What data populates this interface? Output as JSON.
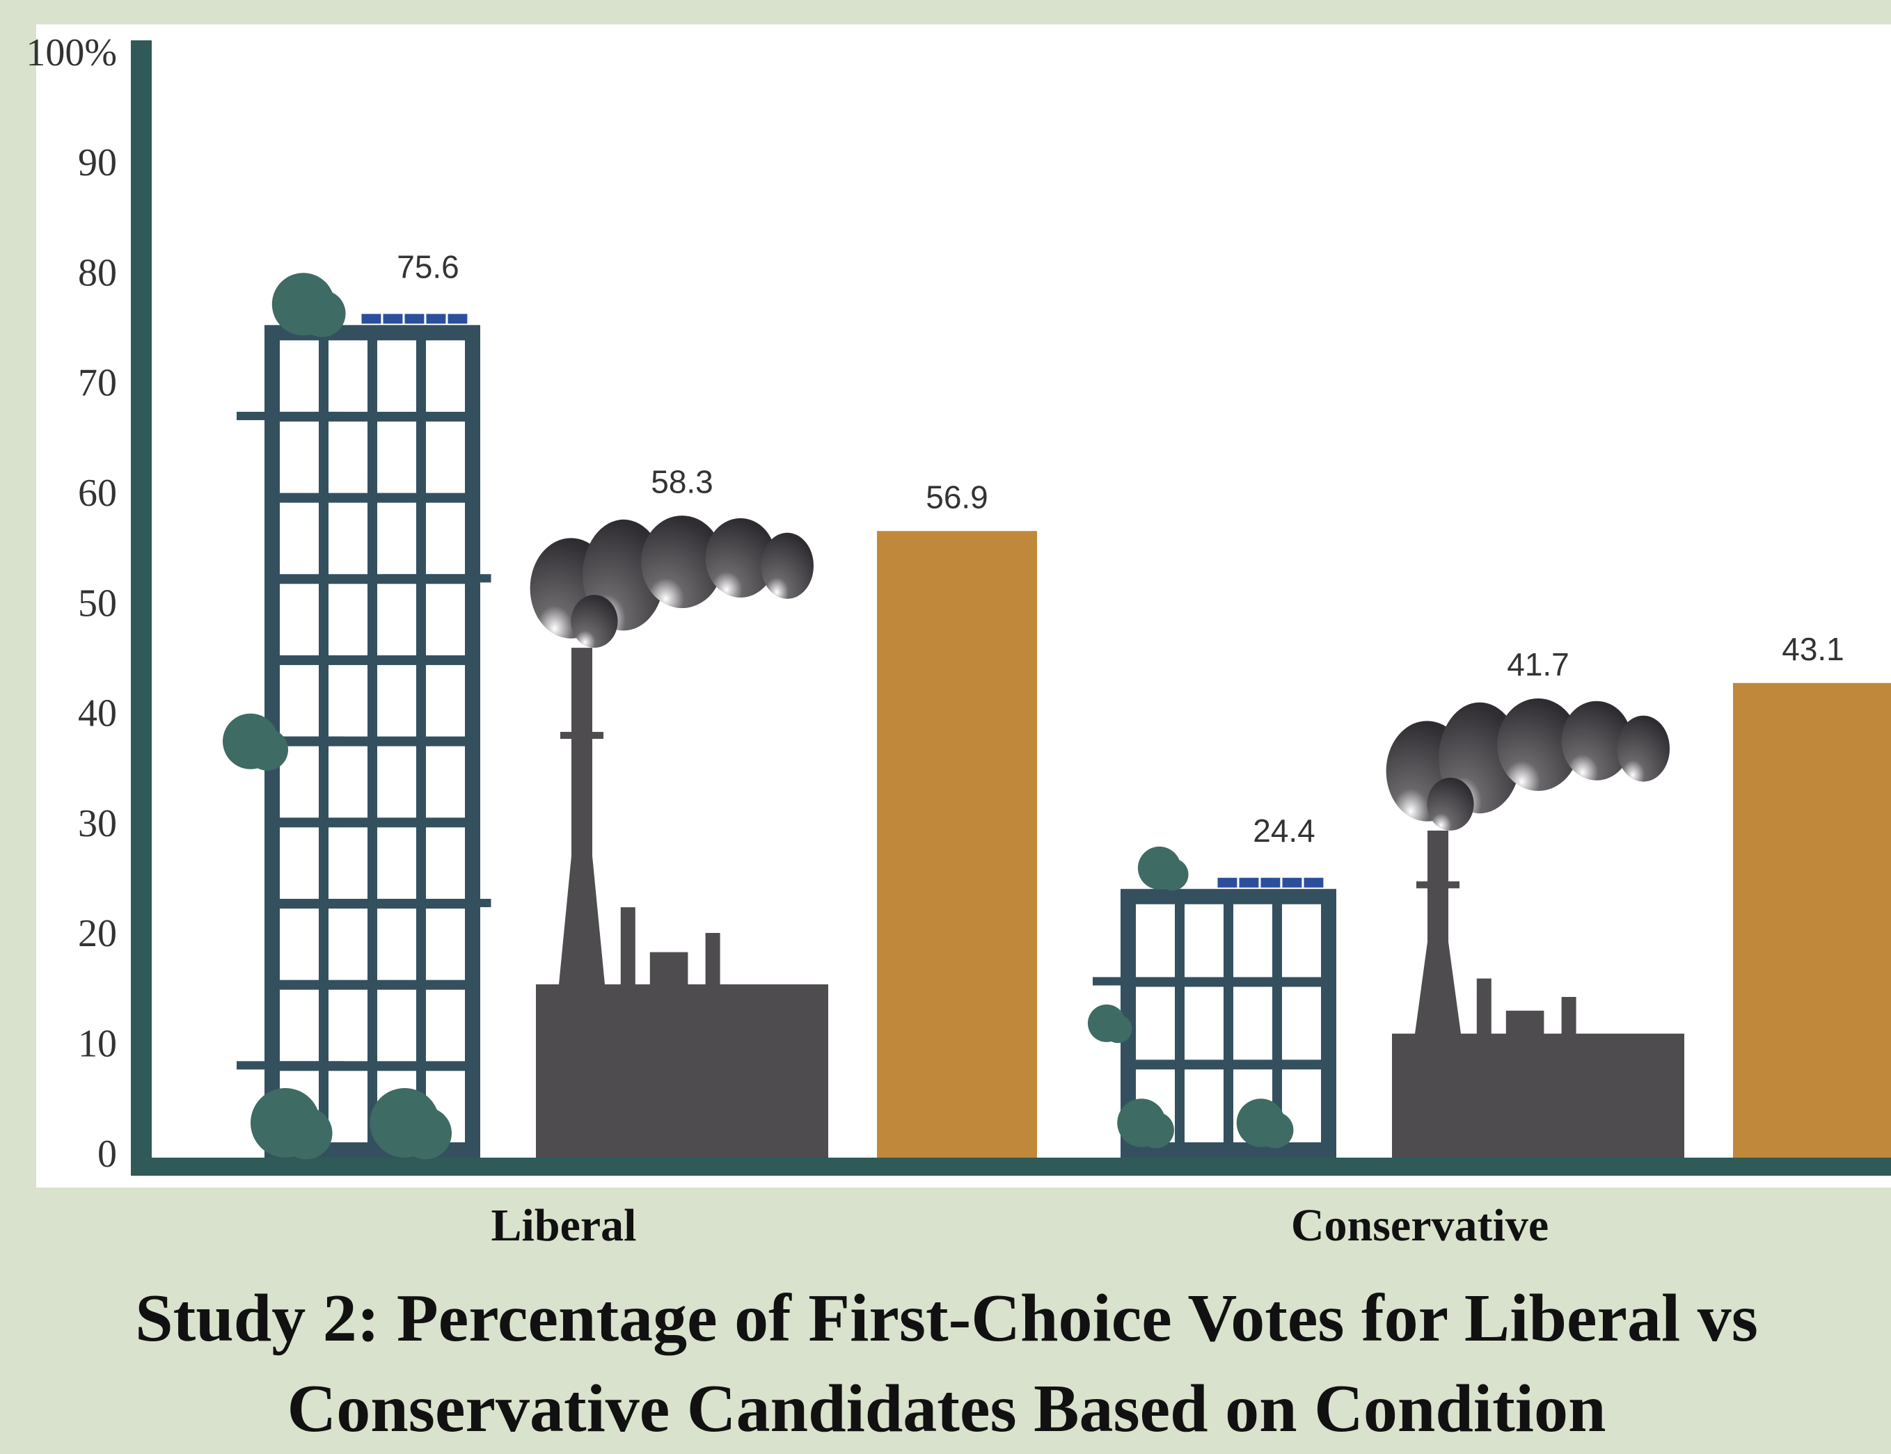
{
  "chart_data": {
    "type": "bar",
    "title": "Study 2: Percentage of First-Choice Votes for Liberal vs Conservative Candidates Based on Condition",
    "categories": [
      "Liberal",
      "Conservative"
    ],
    "series": [
      {
        "color": "#34505f",
        "values": [
          75.6,
          24.4
        ]
      },
      {
        "color": "#4f4c50",
        "values": [
          58.3,
          41.7
        ]
      },
      {
        "color": "#c0883a",
        "values": [
          56.9,
          43.1
        ]
      }
    ],
    "ylim": [
      0,
      100
    ],
    "yticks": [
      0,
      10,
      20,
      30,
      40,
      50,
      60,
      70,
      80,
      90,
      {
        "value": 100,
        "label": "100%"
      }
    ]
  }
}
